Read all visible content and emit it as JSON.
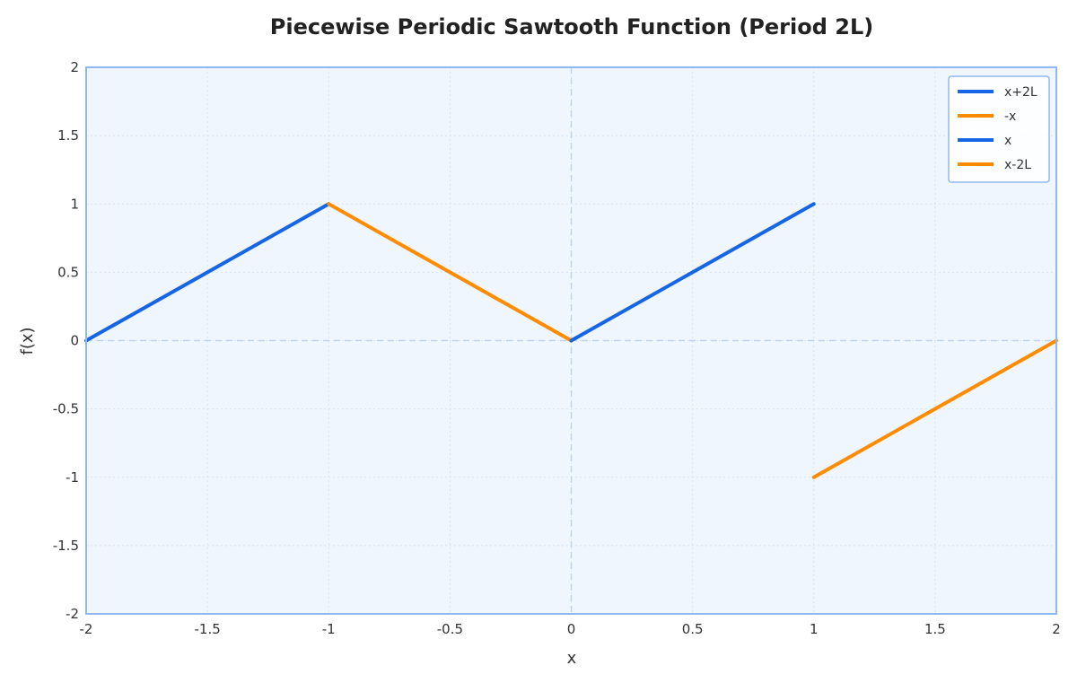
{
  "chart_data": {
    "type": "line",
    "title": "Piecewise Periodic Sawtooth Function (Period 2L)",
    "xlabel": "x",
    "ylabel": "f(x)",
    "xlim": [
      -2,
      2
    ],
    "ylim": [
      -2,
      2
    ],
    "xticks": [
      -2,
      -1.5,
      -1,
      -0.5,
      0,
      0.5,
      1,
      1.5,
      2
    ],
    "yticks": [
      -2,
      -1.5,
      -1,
      -0.5,
      0,
      0.5,
      1,
      1.5,
      2
    ],
    "grid": true,
    "legend_position": "top-right",
    "series": [
      {
        "name": "x+2L",
        "color": "#1565e6",
        "x": [
          -2,
          -1
        ],
        "y": [
          0,
          1
        ]
      },
      {
        "name": "-x",
        "color": "#ff8c00",
        "x": [
          -1,
          0
        ],
        "y": [
          1,
          0
        ]
      },
      {
        "name": "x",
        "color": "#1565e6",
        "x": [
          0,
          1
        ],
        "y": [
          0,
          1
        ]
      },
      {
        "name": "x-2L",
        "color": "#ff8c00",
        "x": [
          1,
          2
        ],
        "y": [
          -1,
          0
        ]
      }
    ],
    "colors": {
      "plot_background": "#f0f6fd",
      "frame": "#90b8ee",
      "grid": "#d6e3f3",
      "zero_line": "#bcd4f2"
    }
  }
}
